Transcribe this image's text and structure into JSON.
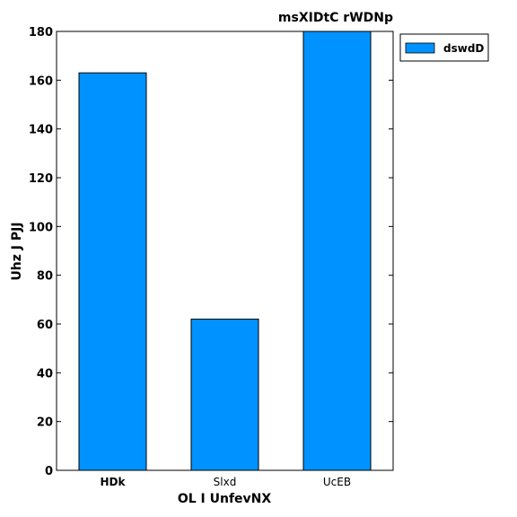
{
  "chart_data": {
    "type": "bar",
    "title": "msXIDtC rWDNp",
    "xlabel": "OL  I UnfevNX",
    "ylabel": "Uhz J PJJ",
    "categories": [
      "HDk",
      "Slxd",
      "UcEB"
    ],
    "bold_categories": [
      true,
      false,
      false
    ],
    "series": [
      {
        "name": "dswdD",
        "values": [
          163,
          62,
          180
        ],
        "color": "#0092ff"
      }
    ],
    "ylim": [
      0,
      180
    ],
    "yticks": [
      0,
      20,
      40,
      60,
      80,
      100,
      120,
      140,
      160,
      180
    ],
    "grid": false,
    "legend_position": "outside-top-right"
  }
}
